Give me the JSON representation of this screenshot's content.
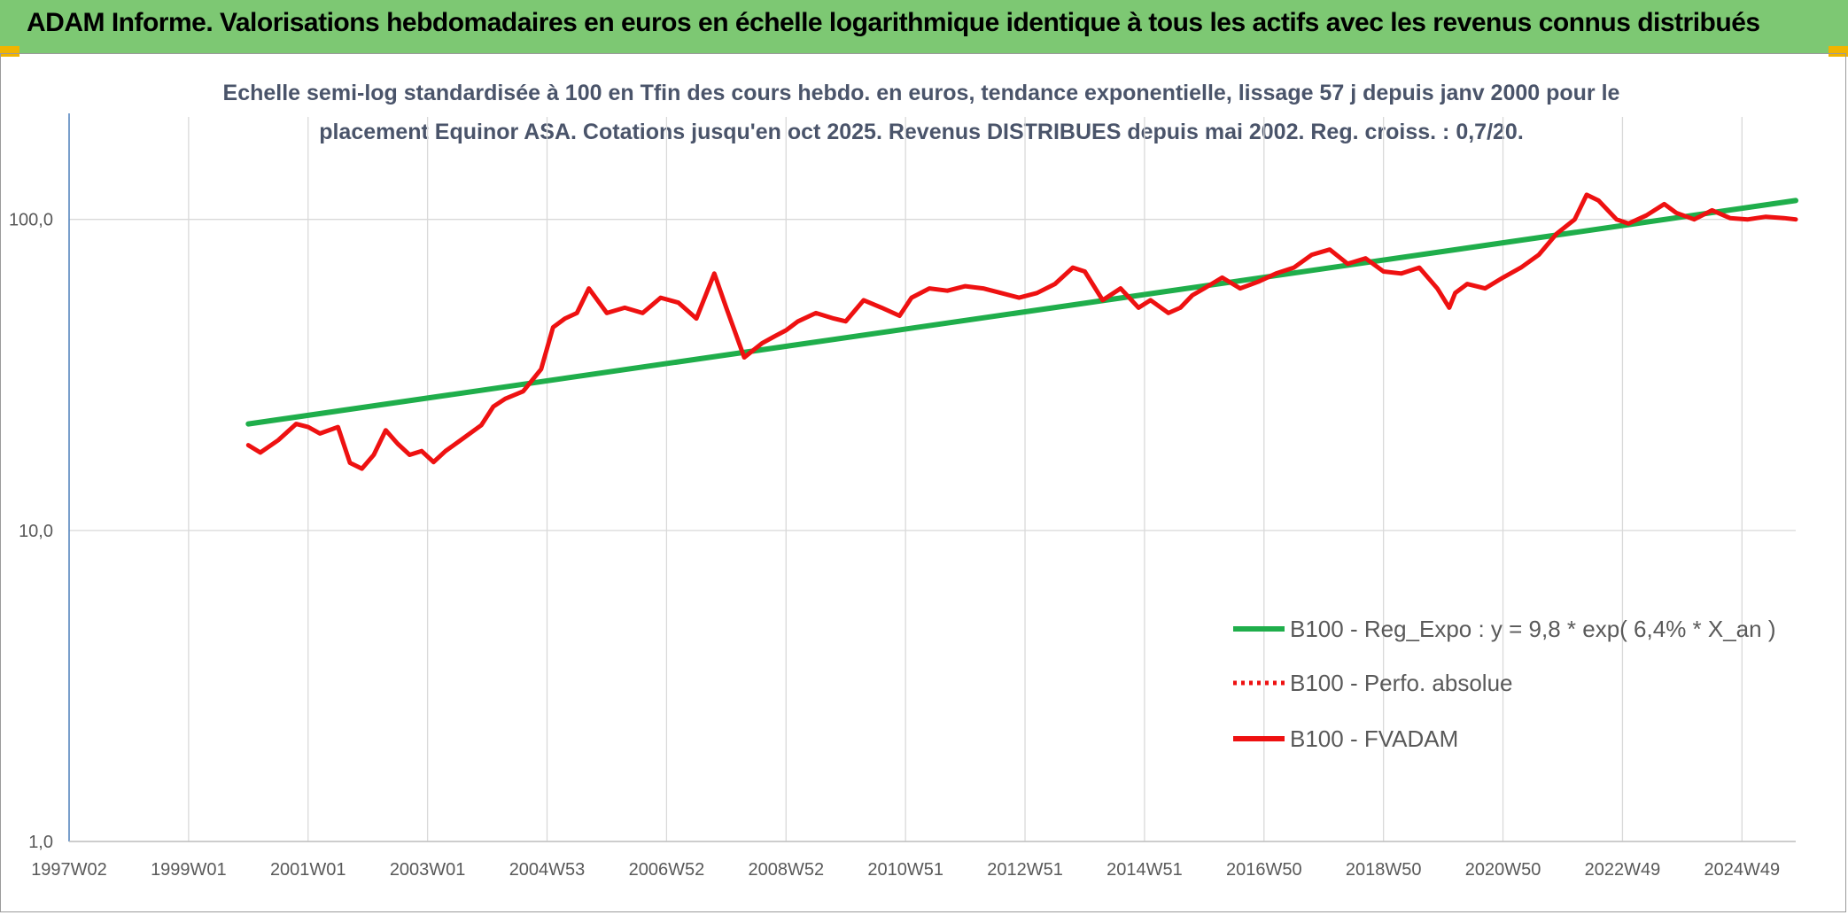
{
  "header": {
    "title": "ADAM Informe. Valorisations hebdomadaires en euros en échelle logarithmique identique à tous les actifs avec les revenus connus distribués"
  },
  "colors": {
    "banner": "#7dc873",
    "regression": "#1fae4b",
    "series": "#ee1111",
    "grid": "#d9d9d9",
    "axis": "#4f81bd"
  },
  "chart_data": {
    "type": "line",
    "subtitle_lines": [
      "Echelle semi-log standardisée à 100 en Tfin des cours hebdo. en euros, tendance exponentielle, lissage 57 j depuis janv 2000 pour le",
      "placement Equinor ASA. Cotations jusqu'en oct 2025. Revenus DISTRIBUES depuis mai 2002. Reg. croiss. : 0,7/20."
    ],
    "y_scale": "log",
    "ylim": [
      1,
      200
    ],
    "y_ticks": [
      {
        "value": 1,
        "label": "1,0"
      },
      {
        "value": 10,
        "label": "10,0"
      },
      {
        "value": 100,
        "label": "100,0"
      }
    ],
    "xlim": [
      1997.0,
      2025.9
    ],
    "x_ticks": [
      {
        "value": 1997.0,
        "label": "1997W02"
      },
      {
        "value": 1999.0,
        "label": "1999W01"
      },
      {
        "value": 2001.0,
        "label": "2001W01"
      },
      {
        "value": 2003.0,
        "label": "2003W01"
      },
      {
        "value": 2005.0,
        "label": "2004W53"
      },
      {
        "value": 2007.0,
        "label": "2006W52"
      },
      {
        "value": 2009.0,
        "label": "2008W52"
      },
      {
        "value": 2011.0,
        "label": "2010W51"
      },
      {
        "value": 2013.0,
        "label": "2012W51"
      },
      {
        "value": 2015.0,
        "label": "2014W51"
      },
      {
        "value": 2017.0,
        "label": "2016W50"
      },
      {
        "value": 2019.0,
        "label": "2018W50"
      },
      {
        "value": 2021.0,
        "label": "2020W50"
      },
      {
        "value": 2023.0,
        "label": "2022W49"
      },
      {
        "value": 2025.0,
        "label": "2024W49"
      }
    ],
    "grid": true,
    "legend_position": "bottom-right",
    "series": [
      {
        "name": "B100 - Reg_Expo : y = 9,8 * exp( 6,4% *  X_an )",
        "color": "#1fae4b",
        "style": "solid",
        "x": [
          2000.0,
          2025.9
        ],
        "y": [
          22.0,
          115.0
        ]
      },
      {
        "name": "B100 - Perfo. absolue",
        "color": "#ee1111",
        "style": "dotted",
        "x": [],
        "y": []
      },
      {
        "name": "B100 - FVADAM",
        "color": "#ee1111",
        "style": "solid",
        "x": [
          2000.0,
          2000.2,
          2000.5,
          2000.8,
          2001.0,
          2001.2,
          2001.5,
          2001.7,
          2001.9,
          2002.1,
          2002.3,
          2002.5,
          2002.7,
          2002.9,
          2003.1,
          2003.3,
          2003.6,
          2003.9,
          2004.1,
          2004.3,
          2004.6,
          2004.9,
          2005.1,
          2005.3,
          2005.5,
          2005.7,
          2006.0,
          2006.3,
          2006.6,
          2006.9,
          2007.2,
          2007.5,
          2007.8,
          2008.0,
          2008.3,
          2008.6,
          2008.8,
          2009.0,
          2009.2,
          2009.5,
          2009.8,
          2010.0,
          2010.3,
          2010.6,
          2010.9,
          2011.1,
          2011.4,
          2011.7,
          2012.0,
          2012.3,
          2012.6,
          2012.9,
          2013.2,
          2013.5,
          2013.8,
          2014.0,
          2014.3,
          2014.6,
          2014.9,
          2015.1,
          2015.4,
          2015.6,
          2015.8,
          2016.0,
          2016.3,
          2016.6,
          2016.9,
          2017.2,
          2017.5,
          2017.8,
          2018.1,
          2018.4,
          2018.7,
          2019.0,
          2019.3,
          2019.6,
          2019.9,
          2020.1,
          2020.2,
          2020.4,
          2020.7,
          2021.0,
          2021.3,
          2021.6,
          2021.9,
          2022.2,
          2022.4,
          2022.6,
          2022.9,
          2023.1,
          2023.4,
          2023.7,
          2023.9,
          2024.2,
          2024.5,
          2024.8,
          2025.1,
          2025.4,
          2025.7,
          2025.9
        ],
        "y": [
          18.8,
          17.8,
          19.5,
          22.0,
          21.5,
          20.5,
          21.5,
          16.5,
          15.8,
          17.5,
          21.0,
          19.0,
          17.5,
          18.0,
          16.6,
          18.0,
          19.8,
          21.8,
          25.0,
          26.5,
          28.0,
          33.0,
          45.0,
          48.0,
          50.0,
          60.0,
          50.0,
          52.0,
          50.0,
          56.0,
          54.0,
          48.0,
          67.0,
          52.0,
          36.0,
          40.0,
          42.0,
          44.0,
          47.0,
          50.0,
          48.0,
          47.0,
          55.0,
          52.0,
          49.0,
          56.0,
          60.0,
          59.0,
          61.0,
          60.0,
          58.0,
          56.0,
          58.0,
          62.0,
          70.0,
          68.0,
          55.0,
          60.0,
          52.0,
          55.0,
          50.0,
          52.0,
          57.0,
          60.0,
          65.0,
          60.0,
          63.0,
          67.0,
          70.0,
          77.0,
          80.0,
          72.0,
          75.0,
          68.0,
          67.0,
          70.0,
          60.0,
          52.0,
          58.0,
          62.0,
          60.0,
          65.0,
          70.0,
          77.0,
          90.0,
          100.0,
          120.0,
          115.0,
          100.0,
          97.0,
          103.0,
          112.0,
          105.0,
          100.0,
          107.0,
          101.0,
          100.0,
          102.0,
          101.0,
          100.0
        ]
      }
    ]
  }
}
